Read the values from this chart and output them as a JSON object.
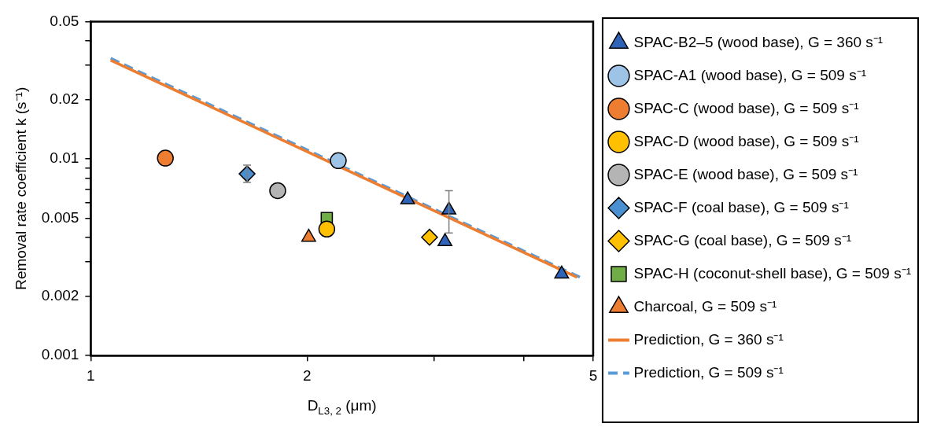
{
  "chart_data": {
    "type": "scatter",
    "xlabel": "D$_{L3, 2}$ (μm)",
    "ylabel": "Removal rate coefficient k (s⁻¹)",
    "log": "xy",
    "grid": false,
    "legend": "right",
    "xlim": [
      1,
      5
    ],
    "ylim": [
      0.001,
      0.05
    ],
    "xticks": [
      1,
      2,
      {
        "value": 3,
        "label": null
      },
      {
        "value": 4,
        "label": null
      },
      5
    ],
    "yticks": [
      0.001,
      0.002,
      {
        "value": 0.003,
        "label": null
      },
      {
        "value": 0.004,
        "label": null
      },
      0.005,
      {
        "value": 0.006,
        "label": null
      },
      {
        "value": 0.007,
        "label": null
      },
      {
        "value": 0.008,
        "label": null
      },
      {
        "value": 0.009,
        "label": null
      },
      0.01,
      0.02,
      {
        "value": 0.03,
        "label": null
      },
      {
        "value": 0.04,
        "label": null
      },
      0.05
    ],
    "series": [
      {
        "name": "SPAC-B2–5 (wood base), G = 360 s⁻¹",
        "marker": "triangle",
        "color": "#2e63b8",
        "x": [
          2.76,
          3.15,
          3.11,
          4.52
        ],
        "values": [
          0.0062,
          0.0055,
          0.0038,
          0.0026
        ],
        "errors": [
          null,
          [
            0.0042,
            0.0069
          ],
          null,
          null
        ]
      },
      {
        "name": "SPAC-A1 (wood base), G = 509 s⁻¹",
        "marker": "circle",
        "color": "#9dc3e6",
        "x": [
          2.21
        ],
        "values": [
          0.0098
        ]
      },
      {
        "name": "SPAC-C (wood base), G = 509 s⁻¹",
        "marker": "circle",
        "color": "#ed7d31",
        "x": [
          1.27
        ],
        "values": [
          0.0101
        ]
      },
      {
        "name": "SPAC-D (wood base), G = 509 s⁻¹",
        "marker": "circle",
        "color": "#ffc000",
        "x": [
          2.13
        ],
        "values": [
          0.0044
        ]
      },
      {
        "name": "SPAC-E (wood base), G = 509 s⁻¹",
        "marker": "circle",
        "color": "#b4b4b4",
        "x": [
          1.82
        ],
        "values": [
          0.0069
        ]
      },
      {
        "name": "SPAC-F (coal base), G = 509 s⁻¹",
        "marker": "diamond",
        "color": "#4a90d0",
        "x": [
          1.65
        ],
        "values": [
          0.0084
        ],
        "errors": [
          [
            0.0076,
            0.0093
          ]
        ]
      },
      {
        "name": "SPAC-G (coal base), G = 509 s⁻¹",
        "marker": "diamond",
        "color": "#ffc000",
        "x": [
          2.96
        ],
        "values": [
          0.004
        ]
      },
      {
        "name": "SPAC-H (coconut-shell base), G = 509 s⁻¹",
        "marker": "square",
        "color": "#70ad47",
        "x": [
          2.13
        ],
        "values": [
          0.005
        ]
      },
      {
        "name": "Charcoal, G = 509 s⁻¹",
        "marker": "triangle",
        "color": "#ed7d31",
        "x": [
          2.01
        ],
        "values": [
          0.004
        ]
      },
      {
        "name": "Prediction, G = 360 s⁻¹",
        "type": "line",
        "line_style": "solid",
        "color": "#ed7d31",
        "x": [
          1.066,
          4.75
        ],
        "values": [
          0.0318,
          0.0025
        ]
      },
      {
        "name": "Prediction, G = 509 s⁻¹",
        "type": "line",
        "line_style": "dashed",
        "color": "#5b9bd5",
        "x": [
          1.066,
          4.8
        ],
        "values": [
          0.0325,
          0.0025
        ]
      }
    ]
  }
}
